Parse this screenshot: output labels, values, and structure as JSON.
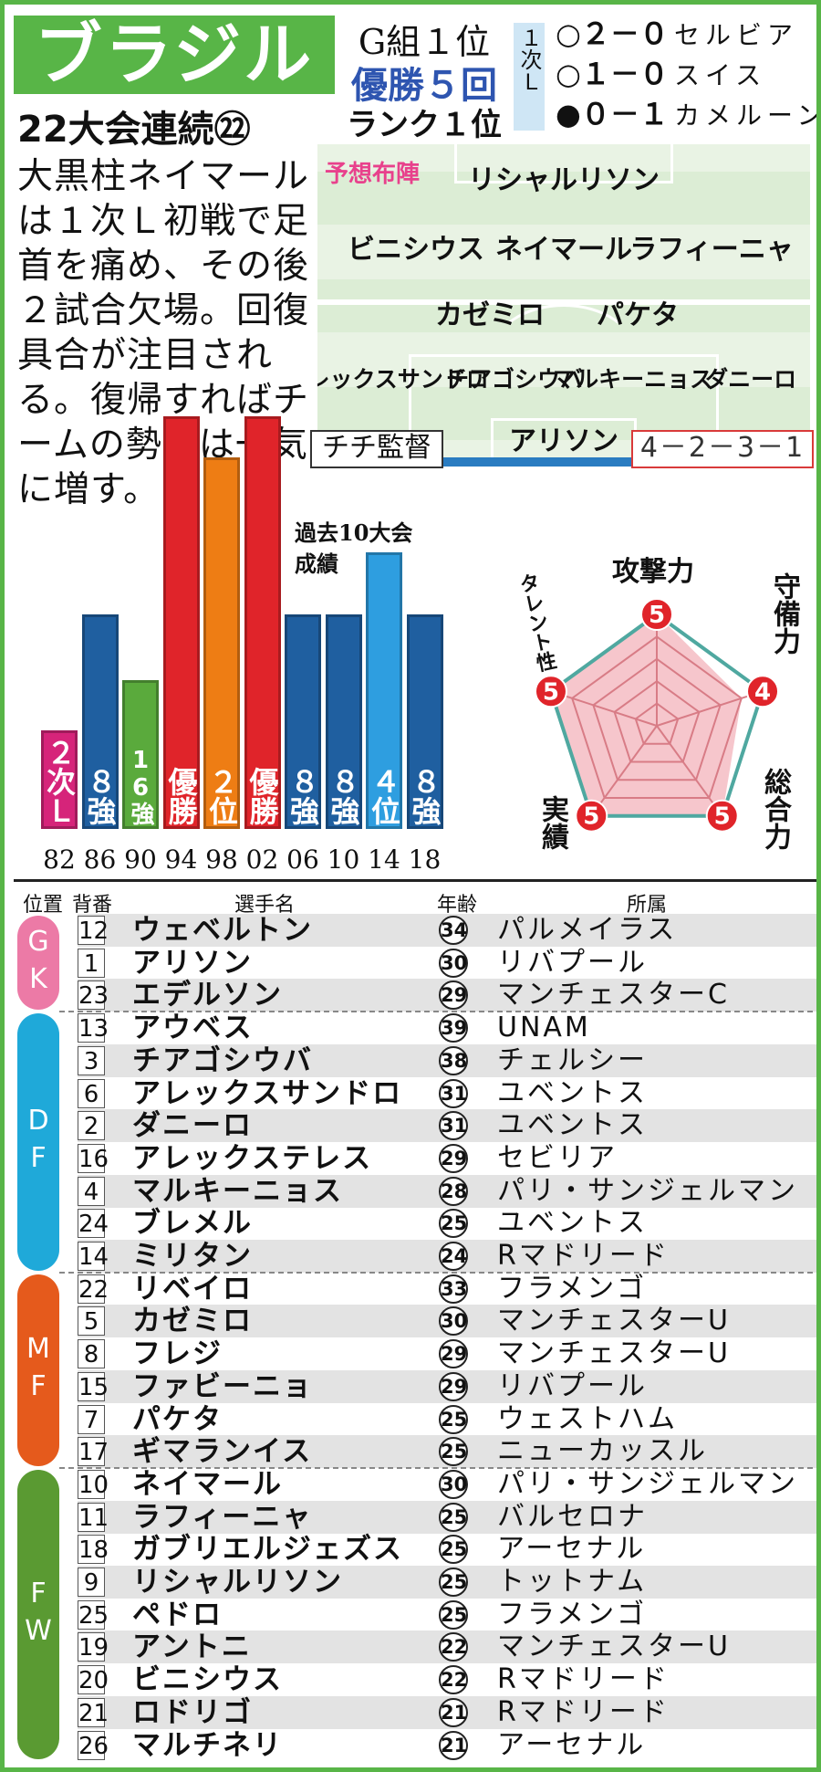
{
  "header": {
    "country": "ブラジル",
    "consecutive": "22大会連続㉒",
    "group": "G組１位",
    "titles": "優勝５回",
    "rank": "ランク１位",
    "stage": "１次Ｌ"
  },
  "results": [
    {
      "mark": "○",
      "score": "２－０",
      "opponent": "セルビア"
    },
    {
      "mark": "○",
      "score": "１－０",
      "opponent": "スイス"
    },
    {
      "mark": "●",
      "score": "０－１",
      "opponent": "カメルーン"
    }
  ],
  "description": "大黒柱ネイマールは１次Ｌ初戦で足首を痛め、その後２試合欠場。回復具合が注目される。復帰すればチームの勢いは一気に増す。",
  "formation": {
    "label": "予想布陣",
    "rows": [
      [
        "リシャルリソン"
      ],
      [
        "ビニシウス",
        "ネイマール",
        "ラフィーニャ"
      ],
      [
        "カゼミロ",
        "パケタ"
      ],
      [
        "アレックスサンドロ",
        "チアゴシウバ",
        "マルキーニョス",
        "ダニーロ"
      ],
      [
        "アリソン"
      ]
    ],
    "coach": "チチ監督",
    "system": "4－2－3－1"
  },
  "history": {
    "title": "過去10大会成績",
    "bars": [
      {
        "year": "82",
        "label": "２次Ｌ",
        "level": 0.24,
        "color": "#d6247a"
      },
      {
        "year": "86",
        "label": "８強",
        "level": 0.52,
        "color": "#1f5fa0"
      },
      {
        "year": "90",
        "label": "16強",
        "level": 0.36,
        "color": "#5aaa3c"
      },
      {
        "year": "94",
        "label": "優勝",
        "level": 1.0,
        "color": "#e0242a"
      },
      {
        "year": "98",
        "label": "２位",
        "level": 0.9,
        "color": "#ee7d14"
      },
      {
        "year": "02",
        "label": "優勝",
        "level": 1.0,
        "color": "#e0242a"
      },
      {
        "year": "06",
        "label": "８強",
        "level": 0.52,
        "color": "#1f5fa0"
      },
      {
        "year": "10",
        "label": "８強",
        "level": 0.52,
        "color": "#1f5fa0"
      },
      {
        "year": "14",
        "label": "４位",
        "level": 0.67,
        "color": "#2e9ee0"
      },
      {
        "year": "18",
        "label": "８強",
        "level": 0.52,
        "color": "#1f5fa0"
      }
    ]
  },
  "radar": {
    "max": 5,
    "axes": [
      {
        "label": "攻撃力",
        "value": 5
      },
      {
        "label": "守備力",
        "value": 4
      },
      {
        "label": "総合力",
        "value": 5
      },
      {
        "label": "実績",
        "value": 5
      },
      {
        "label": "タレント性",
        "value": 5
      }
    ]
  },
  "roster_header": {
    "pos": "位置",
    "num": "背番",
    "name": "選手名",
    "age": "年齢",
    "club": "所属"
  },
  "positions": [
    {
      "code": "GK",
      "color": "#ec7aa6"
    },
    {
      "code": "DF",
      "color": "#1fa9d9"
    },
    {
      "code": "MF",
      "color": "#e55a1c"
    },
    {
      "code": "FW",
      "color": "#5a9a32"
    }
  ],
  "players": [
    {
      "pos": "GK",
      "num": "12",
      "name": "ウェベルトン",
      "age": "34",
      "club": "パルメイラス"
    },
    {
      "pos": "GK",
      "num": "1",
      "name": "アリソン",
      "age": "30",
      "club": "リバプール"
    },
    {
      "pos": "GK",
      "num": "23",
      "name": "エデルソン",
      "age": "29",
      "club": "マンチェスターC"
    },
    {
      "pos": "DF",
      "num": "13",
      "name": "アウベス",
      "age": "39",
      "club": "UNAM"
    },
    {
      "pos": "DF",
      "num": "3",
      "name": "チアゴシウバ",
      "age": "38",
      "club": "チェルシー"
    },
    {
      "pos": "DF",
      "num": "6",
      "name": "アレックスサンドロ",
      "age": "31",
      "club": "ユベントス"
    },
    {
      "pos": "DF",
      "num": "2",
      "name": "ダニーロ",
      "age": "31",
      "club": "ユベントス"
    },
    {
      "pos": "DF",
      "num": "16",
      "name": "アレックステレス",
      "age": "29",
      "club": "セビリア"
    },
    {
      "pos": "DF",
      "num": "4",
      "name": "マルキーニョス",
      "age": "28",
      "club": "パリ・サンジェルマン"
    },
    {
      "pos": "DF",
      "num": "24",
      "name": "ブレメル",
      "age": "25",
      "club": "ユベントス"
    },
    {
      "pos": "DF",
      "num": "14",
      "name": "ミリタン",
      "age": "24",
      "club": "Rマドリード"
    },
    {
      "pos": "MF",
      "num": "22",
      "name": "リベイロ",
      "age": "33",
      "club": "フラメンゴ"
    },
    {
      "pos": "MF",
      "num": "5",
      "name": "カゼミロ",
      "age": "30",
      "club": "マンチェスターU"
    },
    {
      "pos": "MF",
      "num": "8",
      "name": "フレジ",
      "age": "29",
      "club": "マンチェスターU"
    },
    {
      "pos": "MF",
      "num": "15",
      "name": "ファビーニョ",
      "age": "29",
      "club": "リバプール"
    },
    {
      "pos": "MF",
      "num": "7",
      "name": "パケタ",
      "age": "25",
      "club": "ウェストハム"
    },
    {
      "pos": "MF",
      "num": "17",
      "name": "ギマランイス",
      "age": "25",
      "club": "ニューカッスル"
    },
    {
      "pos": "FW",
      "num": "10",
      "name": "ネイマール",
      "age": "30",
      "club": "パリ・サンジェルマン"
    },
    {
      "pos": "FW",
      "num": "11",
      "name": "ラフィーニャ",
      "age": "25",
      "club": "バルセロナ"
    },
    {
      "pos": "FW",
      "num": "18",
      "name": "ガブリエルジェズス",
      "age": "25",
      "club": "アーセナル"
    },
    {
      "pos": "FW",
      "num": "9",
      "name": "リシャルリソン",
      "age": "25",
      "club": "トットナム"
    },
    {
      "pos": "FW",
      "num": "25",
      "name": "ペドロ",
      "age": "25",
      "club": "フラメンゴ"
    },
    {
      "pos": "FW",
      "num": "19",
      "name": "アントニ",
      "age": "22",
      "club": "マンチェスターU"
    },
    {
      "pos": "FW",
      "num": "20",
      "name": "ビニシウス",
      "age": "22",
      "club": "Rマドリード"
    },
    {
      "pos": "FW",
      "num": "21",
      "name": "ロドリゴ",
      "age": "21",
      "club": "Rマドリード"
    },
    {
      "pos": "FW",
      "num": "26",
      "name": "マルチネリ",
      "age": "21",
      "club": "アーセナル"
    }
  ]
}
